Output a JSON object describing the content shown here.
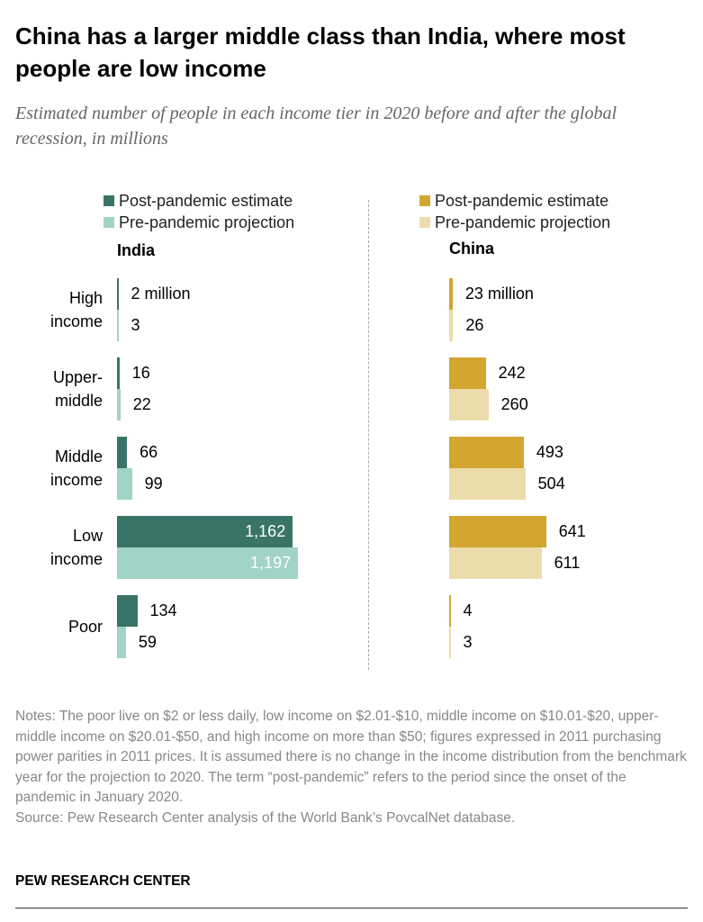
{
  "title": "China has a larger middle class than India, where most people are low income",
  "subtitle": "Estimated number of people in each income tier in 2020 before and after the global recession, in millions",
  "notes": "Notes: The poor live on $2 or less daily, low income on $2.01-$10, middle income on $10.01-$20, upper-middle income on $20.01-$50, and high income on more than $50; figures expressed in 2011 purchasing power parities in 2011 prices. It is assumed there is no change in the income distribution from the benchmark year for the projection to 2020. The term “post-pandemic” refers to the period since the onset of the pandemic in January 2020.",
  "source": "Source: Pew Research Center analysis of the World Bank’s PovcalNet database.",
  "brand": "PEW RESEARCH CENTER",
  "chart_data": [
    {
      "type": "bar",
      "orientation": "horizontal",
      "title": "India",
      "categories": [
        "High income",
        "Upper-middle",
        "Middle income",
        "Low income",
        "Poor"
      ],
      "series": [
        {
          "name": "Post-pandemic estimate",
          "color": "#3a7466",
          "values": [
            2,
            16,
            66,
            1162,
            134
          ],
          "labels": [
            "2 million",
            "16",
            "66",
            "1,162",
            "134"
          ]
        },
        {
          "name": "Pre-pandemic projection",
          "color": "#a1d3c7",
          "values": [
            3,
            22,
            99,
            1197,
            59
          ],
          "labels": [
            "3",
            "22",
            "99",
            "1,197",
            "59"
          ]
        }
      ]
    },
    {
      "type": "bar",
      "orientation": "horizontal",
      "title": "China",
      "categories": [
        "High income",
        "Upper-middle",
        "Middle income",
        "Low income",
        "Poor"
      ],
      "series": [
        {
          "name": "Post-pandemic estimate",
          "color": "#d2a630",
          "values": [
            23,
            242,
            493,
            641,
            4
          ],
          "labels": [
            "23 million",
            "242",
            "493",
            "641",
            "4"
          ]
        },
        {
          "name": "Pre-pandemic projection",
          "color": "#eddcab",
          "values": [
            26,
            260,
            504,
            611,
            3
          ],
          "labels": [
            "26",
            "260",
            "504",
            "611",
            "3"
          ]
        }
      ]
    }
  ],
  "category_labels": [
    "High\nincome",
    "Upper-\nmiddle",
    "Middle\nincome",
    "Low\nincome",
    "Poor"
  ]
}
